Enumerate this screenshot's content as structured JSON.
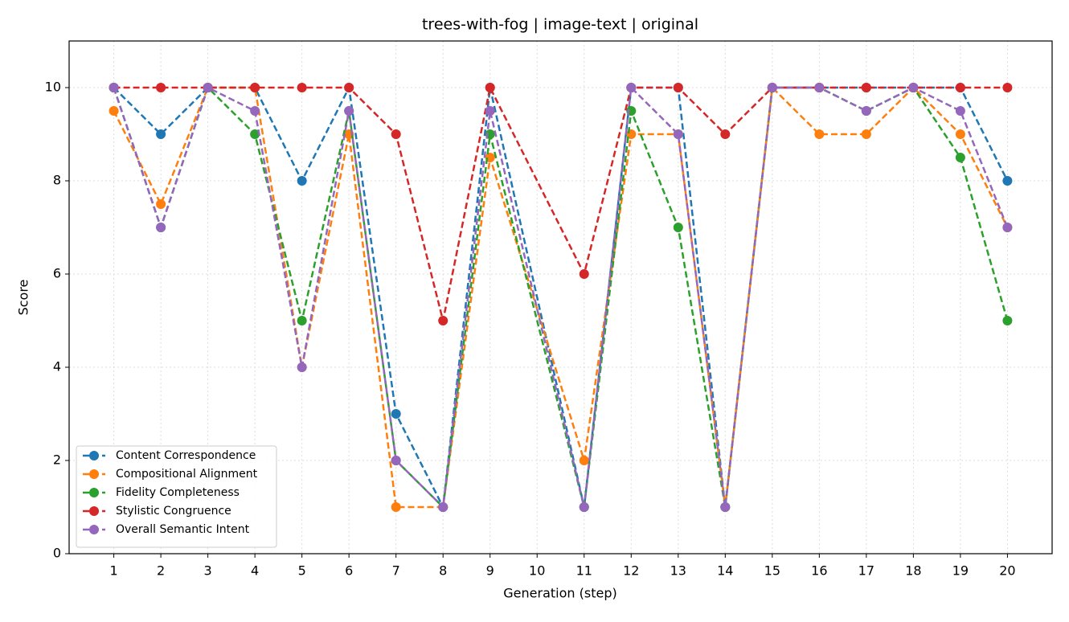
{
  "chart_data": {
    "type": "line",
    "title": "trees-with-fog | image-text | original",
    "xlabel": "Generation (step)",
    "ylabel": "Score",
    "x": [
      1,
      2,
      3,
      4,
      5,
      6,
      7,
      8,
      9,
      11,
      12,
      13,
      14,
      15,
      16,
      17,
      18,
      19,
      20
    ],
    "xlim": [
      0.05,
      20.95
    ],
    "xticks": [
      1,
      2,
      3,
      4,
      5,
      6,
      7,
      8,
      9,
      10,
      11,
      12,
      13,
      14,
      15,
      16,
      17,
      18,
      19,
      20
    ],
    "ylim": [
      0,
      11
    ],
    "yticks": [
      0,
      2,
      4,
      6,
      8,
      10
    ],
    "grid": true,
    "legend": "lower left",
    "series": [
      {
        "name": "Content Correspondence",
        "color": "#1f77b4",
        "values": [
          10,
          9,
          10,
          10,
          8,
          10,
          3,
          1,
          10,
          1,
          10,
          10,
          1,
          10,
          10,
          10,
          10,
          10,
          8
        ]
      },
      {
        "name": "Compositional Alignment",
        "color": "#ff7f0e",
        "values": [
          9.5,
          7.5,
          10,
          10,
          4,
          9,
          1,
          1,
          8.5,
          2,
          9,
          9,
          1,
          10,
          9,
          9,
          10,
          9,
          7
        ]
      },
      {
        "name": "Fidelity Completeness",
        "color": "#2ca02c",
        "values": [
          10,
          7,
          10,
          9,
          5,
          9.5,
          2,
          1,
          9,
          1,
          9.5,
          7,
          1,
          10,
          10,
          9.5,
          10,
          8.5,
          5
        ]
      },
      {
        "name": "Stylistic Congruence",
        "color": "#d62728",
        "values": [
          10,
          10,
          10,
          10,
          10,
          10,
          9,
          5,
          10,
          6,
          10,
          10,
          9,
          10,
          10,
          10,
          10,
          10,
          10
        ]
      },
      {
        "name": "Overall Semantic Intent",
        "color": "#9467bd",
        "values": [
          10,
          7,
          10,
          9.5,
          4,
          9.5,
          2,
          1,
          9.5,
          1,
          10,
          9,
          1,
          10,
          10,
          9.5,
          10,
          9.5,
          7
        ]
      }
    ]
  }
}
